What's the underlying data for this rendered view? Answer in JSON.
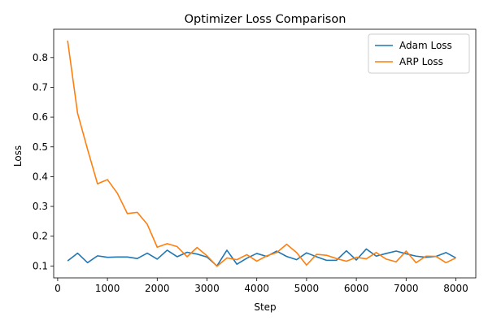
{
  "chart_data": {
    "type": "line",
    "title": "Optimizer Loss Comparison",
    "xlabel": "Step",
    "ylabel": "Loss",
    "xlim": [
      -80,
      8400
    ],
    "ylim": [
      0.06,
      0.895
    ],
    "xticks": [
      0,
      1000,
      2000,
      3000,
      4000,
      5000,
      6000,
      7000,
      8000
    ],
    "yticks": [
      0.1,
      0.2,
      0.3,
      0.4,
      0.5,
      0.6,
      0.7,
      0.8
    ],
    "legend_position": "top-right",
    "x": [
      200,
      400,
      600,
      800,
      1000,
      1200,
      1400,
      1600,
      1800,
      2000,
      2200,
      2400,
      2600,
      2800,
      3000,
      3200,
      3400,
      3600,
      3800,
      4000,
      4200,
      4400,
      4600,
      4800,
      5000,
      5200,
      5400,
      5600,
      5800,
      6000,
      6200,
      6400,
      6600,
      6800,
      7000,
      7200,
      7400,
      7600,
      7800,
      8000
    ],
    "series": [
      {
        "name": "Adam Loss",
        "color": "#1f77b4",
        "values": [
          0.117,
          0.143,
          0.111,
          0.134,
          0.129,
          0.13,
          0.13,
          0.125,
          0.143,
          0.123,
          0.153,
          0.131,
          0.146,
          0.14,
          0.13,
          0.1,
          0.153,
          0.106,
          0.126,
          0.142,
          0.132,
          0.15,
          0.132,
          0.121,
          0.144,
          0.131,
          0.119,
          0.119,
          0.151,
          0.12,
          0.157,
          0.133,
          0.142,
          0.15,
          0.141,
          0.133,
          0.129,
          0.132,
          0.145,
          0.127
        ]
      },
      {
        "name": "ARP Loss",
        "color": "#ff7f0e",
        "values": [
          0.857,
          0.613,
          0.492,
          0.376,
          0.39,
          0.344,
          0.276,
          0.28,
          0.24,
          0.163,
          0.175,
          0.165,
          0.131,
          0.162,
          0.134,
          0.099,
          0.127,
          0.121,
          0.138,
          0.116,
          0.134,
          0.145,
          0.173,
          0.145,
          0.103,
          0.139,
          0.136,
          0.125,
          0.116,
          0.129,
          0.124,
          0.145,
          0.123,
          0.114,
          0.15,
          0.111,
          0.133,
          0.132,
          0.111,
          0.127
        ]
      }
    ]
  }
}
